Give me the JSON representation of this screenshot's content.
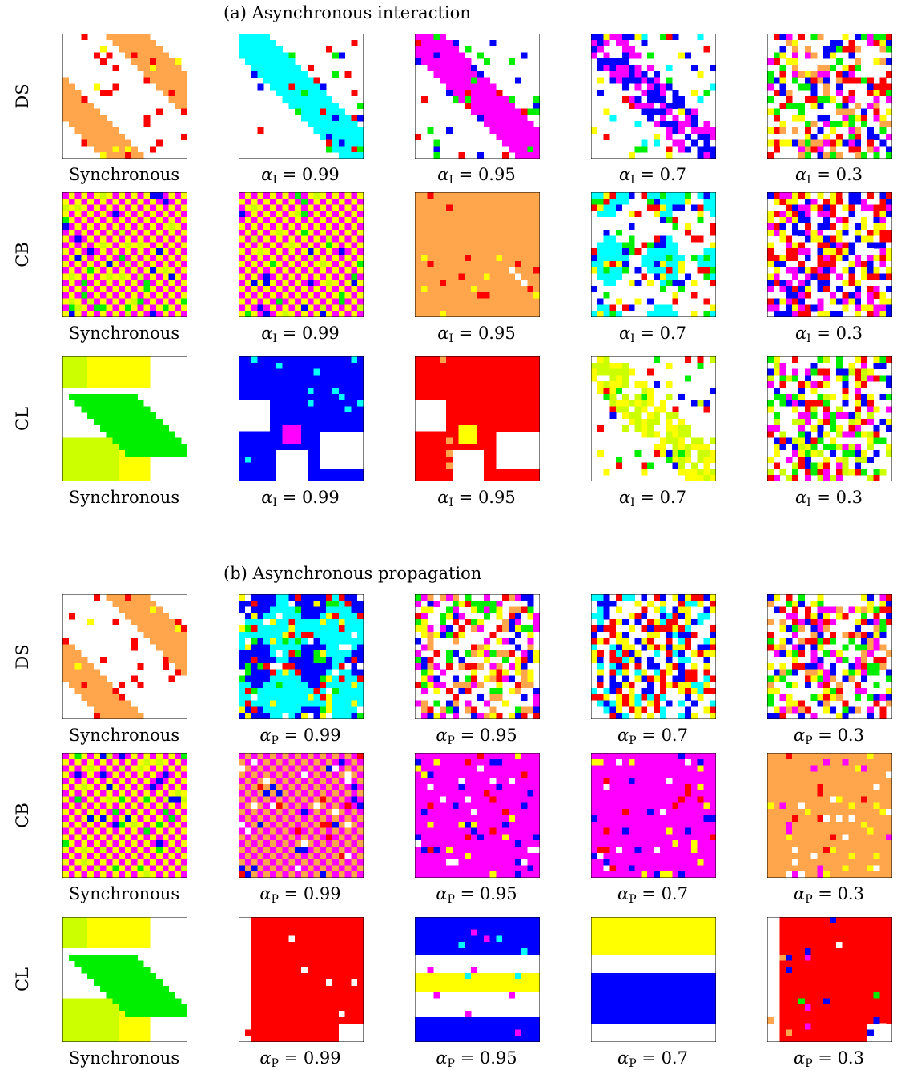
{
  "colors": {
    "white": "#ffffff",
    "orange": "#ffa64d",
    "red": "#ff0000",
    "yellow": "#ffff00",
    "green": "#00ee00",
    "blue": "#0000ff",
    "cyan": "#00ffff",
    "magenta": "#ff00ff",
    "lime": "#ccff00"
  },
  "sections": [
    {
      "title": "(a) Asynchronous interaction",
      "rows": [
        {
          "label": "DS",
          "panels": [
            {
              "caption": "Synchronous",
              "pattern": "ds",
              "palette": [
                "orange",
                "red",
                "yellow"
              ]
            },
            {
              "caption_sym": "α",
              "caption_sub": "I",
              "caption_val": " = 0.99",
              "pattern": "stripe",
              "palette": [
                "cyan",
                "green",
                "red",
                "blue",
                "magenta"
              ]
            },
            {
              "caption_sym": "α",
              "caption_sub": "I",
              "caption_val": " = 0.95",
              "pattern": "stripe",
              "palette": [
                "magenta",
                "blue",
                "green",
                "red"
              ]
            },
            {
              "caption_sym": "α",
              "caption_sub": "I",
              "caption_val": " = 0.7",
              "pattern": "noisy-stripe",
              "palette": [
                "magenta",
                "blue",
                "red",
                "green",
                "yellow",
                "cyan",
                "orange"
              ]
            },
            {
              "caption_sym": "α",
              "caption_sub": "I",
              "caption_val": " = 0.3",
              "pattern": "noise",
              "palette": [
                "red",
                "blue",
                "yellow",
                "orange",
                "green",
                "magenta",
                "cyan",
                "lime"
              ]
            }
          ]
        },
        {
          "label": "CB",
          "panels": [
            {
              "caption": "Synchronous",
              "pattern": "checker",
              "palette": [
                "magenta",
                "yellow",
                "lime",
                "green",
                "blue"
              ]
            },
            {
              "caption_sym": "α",
              "caption_sub": "I",
              "caption_val": " = 0.99",
              "pattern": "checker",
              "palette": [
                "magenta",
                "yellow",
                "lime",
                "green",
                "blue"
              ]
            },
            {
              "caption_sym": "α",
              "caption_sub": "I",
              "caption_val": " = 0.95",
              "pattern": "solid-diag",
              "palette": [
                "orange",
                "red",
                "yellow",
                "white"
              ]
            },
            {
              "caption_sym": "α",
              "caption_sub": "I",
              "caption_val": " = 0.7",
              "pattern": "blobs",
              "palette": [
                "cyan",
                "white",
                "green",
                "blue",
                "yellow",
                "red"
              ]
            },
            {
              "caption_sym": "α",
              "caption_sub": "I",
              "caption_val": " = 0.3",
              "pattern": "noise-dense",
              "palette": [
                "magenta",
                "red",
                "blue",
                "white",
                "yellow",
                "orange",
                "cyan"
              ]
            }
          ]
        },
        {
          "label": "CL",
          "panels": [
            {
              "caption": "Synchronous",
              "pattern": "cl",
              "palette": [
                "yellow",
                "lime",
                "green"
              ]
            },
            {
              "caption_sym": "α",
              "caption_sub": "I",
              "caption_val": " = 0.99",
              "pattern": "big-blob",
              "palette": [
                "blue",
                "magenta",
                "cyan",
                "red"
              ]
            },
            {
              "caption_sym": "α",
              "caption_sub": "I",
              "caption_val": " = 0.95",
              "pattern": "big-blob",
              "palette": [
                "red",
                "yellow",
                "orange",
                "magenta"
              ]
            },
            {
              "caption_sym": "α",
              "caption_sub": "I",
              "caption_val": " = 0.7",
              "pattern": "noisy-stripe",
              "palette": [
                "lime",
                "yellow",
                "green",
                "blue",
                "red"
              ]
            },
            {
              "caption_sym": "α",
              "caption_sub": "I",
              "caption_val": " = 0.3",
              "pattern": "noise",
              "palette": [
                "lime",
                "yellow",
                "green",
                "red",
                "blue",
                "magenta",
                "orange"
              ]
            }
          ]
        }
      ]
    },
    {
      "title": "(b) Asynchronous propagation",
      "rows": [
        {
          "label": "DS",
          "panels": [
            {
              "caption": "Synchronous",
              "pattern": "ds",
              "palette": [
                "orange",
                "red",
                "yellow"
              ]
            },
            {
              "caption_sym": "α",
              "caption_sub": "P",
              "caption_val": " = 0.99",
              "pattern": "blobs",
              "palette": [
                "blue",
                "cyan",
                "green",
                "white",
                "yellow",
                "red",
                "magenta"
              ]
            },
            {
              "caption_sym": "α",
              "caption_sub": "P",
              "caption_val": " = 0.95",
              "pattern": "noise",
              "palette": [
                "yellow",
                "red",
                "blue",
                "green",
                "orange",
                "magenta",
                "cyan"
              ]
            },
            {
              "caption_sym": "α",
              "caption_sub": "P",
              "caption_val": " = 0.7",
              "pattern": "noise-dense",
              "palette": [
                "blue",
                "white",
                "cyan",
                "red",
                "yellow",
                "green",
                "magenta"
              ]
            },
            {
              "caption_sym": "α",
              "caption_sub": "P",
              "caption_val": " = 0.3",
              "pattern": "noise",
              "palette": [
                "red",
                "yellow",
                "blue",
                "orange",
                "green",
                "magenta"
              ]
            }
          ]
        },
        {
          "label": "CB",
          "panels": [
            {
              "caption": "Synchronous",
              "pattern": "checker",
              "palette": [
                "magenta",
                "yellow",
                "lime",
                "green",
                "blue"
              ]
            },
            {
              "caption_sym": "α",
              "caption_sub": "P",
              "caption_val": " = 0.99",
              "pattern": "checker",
              "palette": [
                "magenta",
                "orange",
                "red",
                "blue",
                "white"
              ]
            },
            {
              "caption_sym": "α",
              "caption_sub": "P",
              "caption_val": " = 0.95",
              "pattern": "solid-speck",
              "palette": [
                "magenta",
                "blue",
                "red",
                "white",
                "yellow"
              ]
            },
            {
              "caption_sym": "α",
              "caption_sub": "P",
              "caption_val": " = 0.7",
              "pattern": "solid-speck",
              "palette": [
                "magenta",
                "red",
                "blue",
                "white",
                "yellow"
              ]
            },
            {
              "caption_sym": "α",
              "caption_sub": "P",
              "caption_val": " = 0.3",
              "pattern": "solid-speck",
              "palette": [
                "orange",
                "red",
                "yellow",
                "white",
                "magenta"
              ]
            }
          ]
        },
        {
          "label": "CL",
          "panels": [
            {
              "caption": "Synchronous",
              "pattern": "cl",
              "palette": [
                "yellow",
                "lime",
                "green"
              ]
            },
            {
              "caption_sym": "α",
              "caption_sub": "P",
              "caption_val": " = 0.99",
              "pattern": "solid-block",
              "palette": [
                "red",
                "white"
              ]
            },
            {
              "caption_sym": "α",
              "caption_sub": "P",
              "caption_val": " = 0.95",
              "pattern": "bands",
              "palette": [
                "blue",
                "yellow",
                "white",
                "cyan",
                "magenta"
              ]
            },
            {
              "caption_sym": "α",
              "caption_sub": "P",
              "caption_val": " = 0.7",
              "pattern": "bands2",
              "palette": [
                "yellow",
                "blue",
                "white"
              ]
            },
            {
              "caption_sym": "α",
              "caption_sub": "P",
              "caption_val": " = 0.3",
              "pattern": "solid-block",
              "palette": [
                "red",
                "orange",
                "magenta",
                "white",
                "green",
                "blue"
              ]
            }
          ]
        }
      ]
    }
  ]
}
